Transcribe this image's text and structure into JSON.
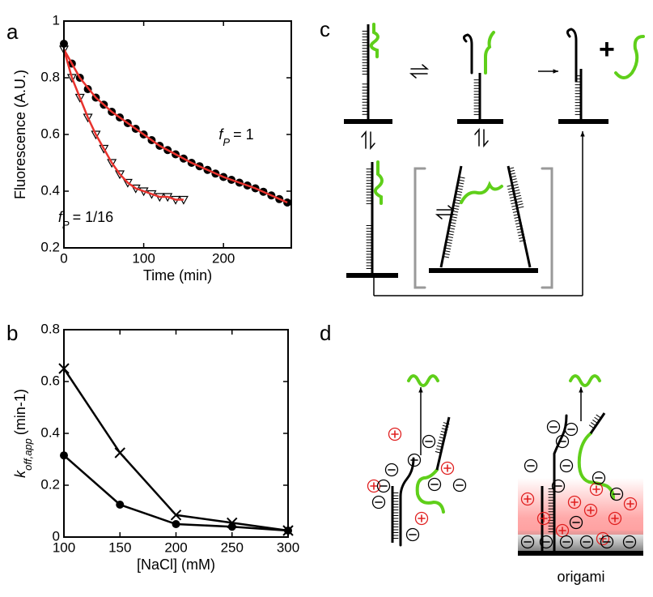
{
  "chart_data": [
    {
      "type": "scatter",
      "panel": "a",
      "x_label": "Time (min)",
      "y_label": "Fluorescence (A.U.)",
      "xlim": [
        0,
        285
      ],
      "xticks": [
        0,
        100,
        200
      ],
      "ylim": [
        0.2,
        1.0
      ],
      "yticks": [
        0.2,
        0.4,
        0.6,
        0.8,
        1
      ],
      "series": [
        {
          "color": "#000000",
          "marker": "circle",
          "line": false,
          "x": [
            0,
            10,
            20,
            30,
            40,
            50,
            60,
            70,
            80,
            90,
            100,
            110,
            120,
            130,
            140,
            150,
            160,
            170,
            180,
            190,
            200,
            210,
            220,
            230,
            240,
            250,
            260,
            270,
            280
          ],
          "values": [
            0.92,
            0.85,
            0.8,
            0.76,
            0.73,
            0.705,
            0.68,
            0.66,
            0.64,
            0.62,
            0.6,
            0.58,
            0.56,
            0.545,
            0.53,
            0.515,
            0.5,
            0.488,
            0.475,
            0.462,
            0.45,
            0.44,
            0.43,
            0.42,
            0.41,
            0.398,
            0.385,
            0.372,
            0.36
          ]
        },
        {
          "color": "#000000",
          "marker": "triangle",
          "line": false,
          "x": [
            0,
            10,
            20,
            30,
            40,
            50,
            60,
            70,
            80,
            90,
            100,
            110,
            120,
            130,
            140,
            150
          ],
          "values": [
            0.9,
            0.8,
            0.73,
            0.66,
            0.6,
            0.55,
            0.5,
            0.46,
            0.43,
            0.41,
            0.4,
            0.39,
            0.38,
            0.38,
            0.37,
            0.37
          ]
        },
        {
          "color": "#e8322d",
          "marker": null,
          "line": true,
          "x": [
            0,
            20,
            40,
            60,
            80,
            100,
            120,
            140,
            160,
            180,
            200,
            220,
            240,
            260,
            280
          ],
          "values": [
            0.9,
            0.8,
            0.73,
            0.68,
            0.64,
            0.6,
            0.56,
            0.53,
            0.5,
            0.475,
            0.45,
            0.43,
            0.41,
            0.385,
            0.36
          ]
        },
        {
          "color": "#e8322d",
          "marker": null,
          "line": true,
          "x": [
            0,
            10,
            20,
            30,
            40,
            50,
            60,
            70,
            80,
            90,
            100,
            110,
            120,
            130,
            140,
            150
          ],
          "values": [
            0.9,
            0.8,
            0.73,
            0.66,
            0.6,
            0.55,
            0.5,
            0.46,
            0.43,
            0.41,
            0.4,
            0.39,
            0.38,
            0.38,
            0.37,
            0.37
          ]
        }
      ],
      "annotations": [
        {
          "symbol": "f",
          "subscript": "P",
          "text": "= 1"
        },
        {
          "symbol": "f",
          "subscript": "P",
          "text": "= 1/16"
        }
      ]
    },
    {
      "type": "line",
      "panel": "b",
      "x_label": "[NaCl] (mM)",
      "y_label": {
        "symbol": "k",
        "subscript": "off,app",
        "text": "(min-1)"
      },
      "xlim": [
        100,
        300
      ],
      "xticks": [
        100,
        150,
        200,
        250,
        300
      ],
      "ylim": [
        0,
        0.8
      ],
      "yticks": [
        0,
        0.2,
        0.4,
        0.6,
        0.8
      ],
      "series": [
        {
          "color": "#000000",
          "marker": "x",
          "line": true,
          "x": [
            100,
            150,
            200,
            250,
            300
          ],
          "values": [
            0.65,
            0.325,
            0.085,
            0.055,
            0.025
          ]
        },
        {
          "color": "#000000",
          "marker": "circle",
          "line": true,
          "x": [
            100,
            150,
            200,
            250,
            300
          ],
          "values": [
            0.315,
            0.125,
            0.05,
            0.04,
            0.025
          ]
        }
      ]
    }
  ],
  "diagram": {
    "panel_c": "c",
    "panel_d": "d",
    "plus": "+",
    "origami": "origami"
  }
}
